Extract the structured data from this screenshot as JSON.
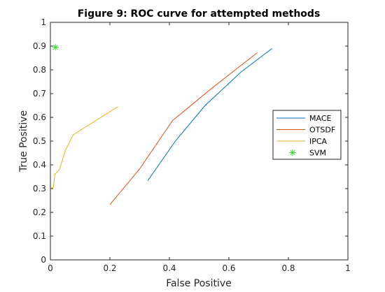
{
  "chart_data": {
    "type": "line",
    "title": "Figure 9: ROC curve for attempted methods",
    "xlabel": "False Positive",
    "ylabel": "True Positive",
    "xlim": [
      0,
      1
    ],
    "ylim": [
      0,
      1
    ],
    "xticks": [
      "0",
      "0.2",
      "0.4",
      "0.6",
      "0.8",
      "1"
    ],
    "yticks": [
      "0",
      "0.1",
      "0.2",
      "0.3",
      "0.4",
      "0.5",
      "0.6",
      "0.7",
      "0.8",
      "0.9",
      "1"
    ],
    "grid": false,
    "legend_position": "right",
    "series": [
      {
        "name": "MACE",
        "color": "#0072bd",
        "marker": "none",
        "points": [
          [
            0.327,
            0.333
          ],
          [
            0.42,
            0.5
          ],
          [
            0.52,
            0.65
          ],
          [
            0.64,
            0.79
          ],
          [
            0.745,
            0.89
          ]
        ]
      },
      {
        "name": "OTSDF",
        "color": "#d95319",
        "marker": "none",
        "points": [
          [
            0.2,
            0.233
          ],
          [
            0.3,
            0.383
          ],
          [
            0.41,
            0.586
          ],
          [
            0.54,
            0.72
          ],
          [
            0.695,
            0.872
          ]
        ]
      },
      {
        "name": "IPCA",
        "color": "#edb120",
        "marker": "none",
        "points": [
          [
            0.0,
            0.302
          ],
          [
            0.01,
            0.305
          ],
          [
            0.015,
            0.36
          ],
          [
            0.03,
            0.38
          ],
          [
            0.05,
            0.46
          ],
          [
            0.077,
            0.527
          ],
          [
            0.227,
            0.645
          ]
        ]
      },
      {
        "name": "SVM",
        "color": "#33dd33",
        "marker": "asterisk",
        "points": [
          [
            0.017,
            0.895
          ]
        ]
      }
    ]
  }
}
